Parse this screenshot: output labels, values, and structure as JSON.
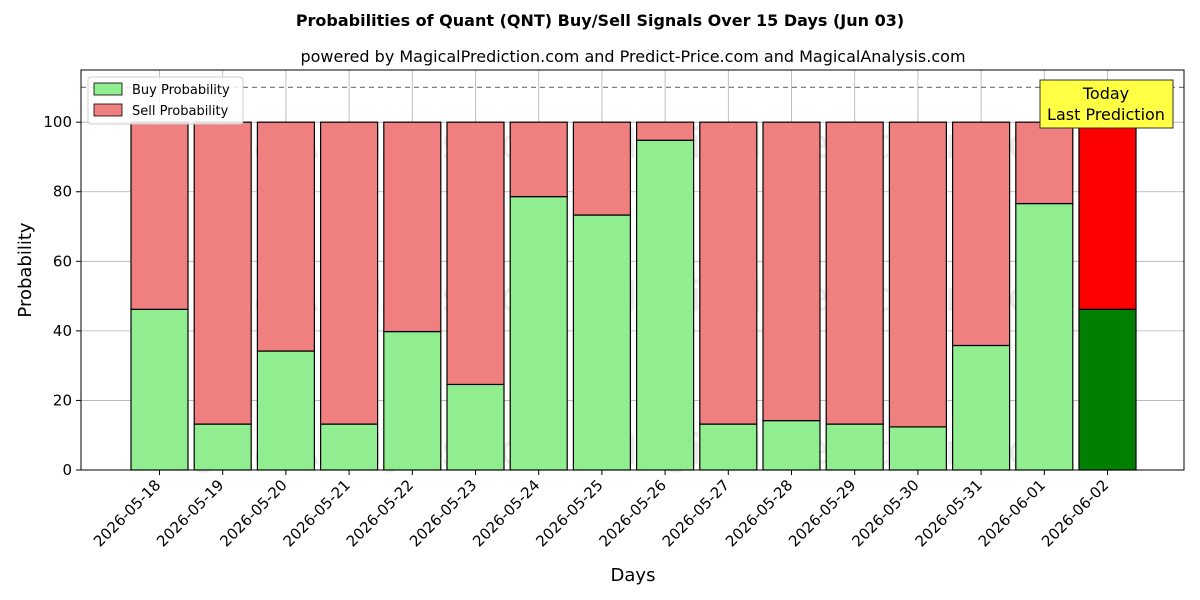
{
  "chart_data": {
    "type": "bar",
    "title": "Probabilities of Quant (QNT) Buy/Sell Signals Over 15 Days (Jun 03)",
    "subtitle": "powered by MagicalPrediction.com and Predict-Price.com and MagicalAnalysis.com",
    "xlabel": "Days",
    "ylabel": "Probability",
    "ylim": [
      0,
      115
    ],
    "yticks": [
      0,
      20,
      40,
      60,
      80,
      100
    ],
    "grid": true,
    "stacked": true,
    "reference_line": 110,
    "legend_position": "top-left",
    "categories": [
      "2026-05-18",
      "2026-05-19",
      "2026-05-20",
      "2026-05-21",
      "2026-05-22",
      "2026-05-23",
      "2026-05-24",
      "2026-05-25",
      "2026-05-26",
      "2026-05-27",
      "2026-05-28",
      "2026-05-29",
      "2026-05-30",
      "2026-05-31",
      "2026-06-01",
      "2026-06-02"
    ],
    "series": [
      {
        "name": "Buy Probability",
        "color": "#90ee90",
        "highlight_color": "#008000",
        "values": [
          46.2,
          13.2,
          34.2,
          13.2,
          39.8,
          24.6,
          78.6,
          73.3,
          94.8,
          13.2,
          14.2,
          13.2,
          12.4,
          35.8,
          76.6,
          46.2
        ]
      },
      {
        "name": "Sell Probability",
        "color": "#f08080",
        "highlight_color": "#ff0000",
        "values": [
          53.8,
          86.8,
          65.8,
          86.8,
          60.2,
          75.4,
          21.4,
          26.7,
          5.2,
          86.8,
          85.8,
          86.8,
          87.6,
          64.2,
          23.4,
          53.8
        ]
      }
    ],
    "annotation": {
      "line1": "Today",
      "line2": "Last Prediction",
      "color": "#ffff44"
    },
    "watermarks": [
      "MagicalAnalysis.com",
      "MagicalPrediction.com"
    ]
  }
}
